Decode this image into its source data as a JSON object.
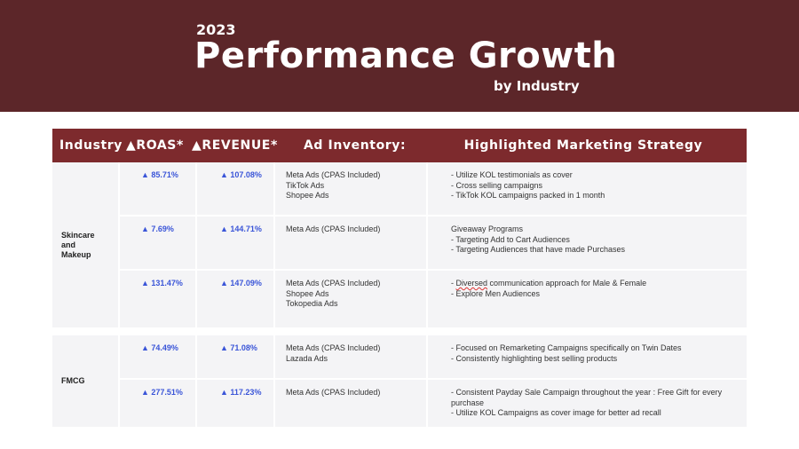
{
  "header": {
    "year": "2023",
    "title": "Performance Growth",
    "subtitle": "by Industry"
  },
  "table": {
    "columns": {
      "industry": "Industry",
      "roas": "▲ROAS*",
      "revenue": "▲REVENUE*",
      "inventory": "Ad Inventory:",
      "strategy": "Highlighted Marketing Strategy"
    },
    "groups": [
      {
        "industry_lines": [
          "Skincare",
          "and",
          "Makeup"
        ],
        "rows": [
          {
            "roas": "▲ 85.71%",
            "revenue": "▲ 107.08%",
            "inventory": [
              "Meta Ads (CPAS Included)",
              "TikTok Ads",
              "Shopee Ads"
            ],
            "strategy": [
              "- Utilize KOL testimonials as cover",
              "- Cross selling campaigns",
              "- TikTok KOL campaigns packed in 1 month"
            ]
          },
          {
            "roas": "▲ 7.69%",
            "revenue": "▲ 144.71%",
            "inventory": [
              "Meta Ads (CPAS Included)"
            ],
            "strategy": [
              "Giveaway Programs",
              "- Targeting Add to Cart Audiences",
              "- Targeting Audiences that have made Purchases"
            ]
          },
          {
            "roas": "▲ 131.47%",
            "revenue": "▲ 147.09%",
            "inventory": [
              "Meta Ads (CPAS Included)",
              "Shopee Ads",
              "Tokopedia Ads"
            ],
            "strategy_first_prefix": "- ",
            "strategy_first_word": "Diversed",
            "strategy_first_rest": " communication approach for Male & Female",
            "strategy_second": "- Explore Men Audiences"
          }
        ]
      },
      {
        "industry_lines": [
          "FMCG"
        ],
        "rows": [
          {
            "roas": "▲ 74.49%",
            "revenue": "▲ 71.08%",
            "inventory": [
              "Meta Ads (CPAS Included)",
              "Lazada Ads"
            ],
            "strategy": [
              "- Focused on Remarketing Campaigns specifically on Twin Dates",
              "- Consistently highlighting best selling products"
            ]
          },
          {
            "roas": "▲ 277.51%",
            "revenue": "▲ 117.23%",
            "inventory": [
              "Meta Ads (CPAS Included)"
            ],
            "strategy": [
              "- Consistent Payday Sale Campaign throughout the year : Free Gift for every purchase",
              "- Utilize KOL Campaigns as cover image for better ad recall"
            ]
          }
        ]
      }
    ]
  }
}
